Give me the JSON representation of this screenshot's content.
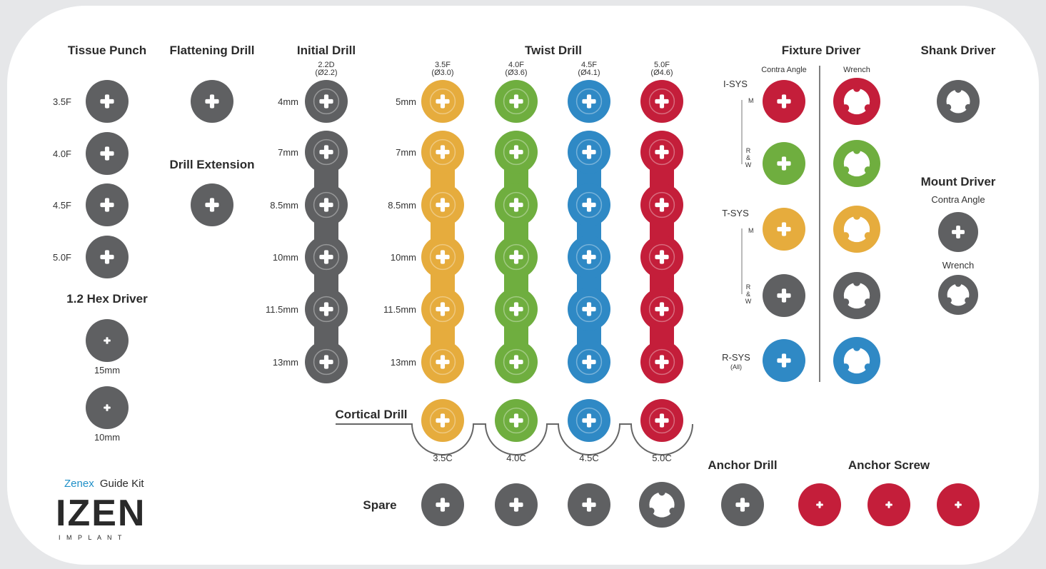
{
  "colors": {
    "gray": "#5f6062",
    "yellow": "#e6ac3d",
    "green": "#6fae3f",
    "blue": "#2f89c5",
    "red": "#c41e3a",
    "tray": "#ffffff",
    "text": "#2b2b2b",
    "brand_blue": "#1e8fc7",
    "brand_dark": "#2a2a2a"
  },
  "headers": {
    "tissue_punch": "Tissue Punch",
    "flattening_drill": "Flattening Drill",
    "initial_drill": "Initial Drill",
    "twist_drill": "Twist Drill",
    "fixture_driver": "Fixture Driver",
    "shank_driver": "Shank Driver",
    "drill_extension": "Drill Extension",
    "hex_driver": "1.2 Hex Driver",
    "mount_driver": "Mount Driver",
    "cortical_drill": "Cortical Drill",
    "spare": "Spare",
    "anchor_drill": "Anchor Drill",
    "anchor_screw": "Anchor Screw"
  },
  "tissue_punch_rows": [
    "3.5F",
    "4.0F",
    "4.5F",
    "5.0F"
  ],
  "hex_driver_rows": [
    "15mm",
    "10mm"
  ],
  "initial_drill": {
    "top_label": "2.2D",
    "top_sub": "(Ø2.2)",
    "rows": [
      "4mm",
      "7mm",
      "8.5mm",
      "10mm",
      "11.5mm",
      "13mm"
    ]
  },
  "twist_drill": {
    "columns": [
      {
        "label": "3.5F",
        "sub": "(Ø3.0)",
        "color": "yellow"
      },
      {
        "label": "4.0F",
        "sub": "(Ø3.6)",
        "color": "green"
      },
      {
        "label": "4.5F",
        "sub": "(Ø4.1)",
        "color": "blue"
      },
      {
        "label": "5.0F",
        "sub": "(Ø4.6)",
        "color": "red"
      }
    ],
    "rows": [
      "5mm",
      "7mm",
      "8.5mm",
      "10mm",
      "11.5mm",
      "13mm"
    ]
  },
  "cortical_labels": [
    "3.5C",
    "4.0C",
    "4.5C",
    "5.0C"
  ],
  "fixture_driver": {
    "col_contra": "Contra Angle",
    "col_wrench": "Wrench",
    "groups": [
      {
        "name": "I-SYS",
        "m": "M",
        "rw": [
          "R",
          "&",
          "W"
        ]
      },
      {
        "name": "T-SYS",
        "m": "M",
        "rw": [
          "R",
          "&",
          "W"
        ]
      },
      {
        "name": "R-SYS",
        "sub": "(All)"
      }
    ]
  },
  "mount_driver": {
    "contra": "Contra Angle",
    "wrench": "Wrench"
  },
  "brand": {
    "zenex": "Zenex",
    "guide_kit": "Guide Kit",
    "logo": "IZEN",
    "implant": "I M P L A N T"
  },
  "icons": {
    "slot": "plus-slot-icon",
    "wrench_socket": "wrench-socket-icon",
    "pin": "pin-slot-icon"
  }
}
